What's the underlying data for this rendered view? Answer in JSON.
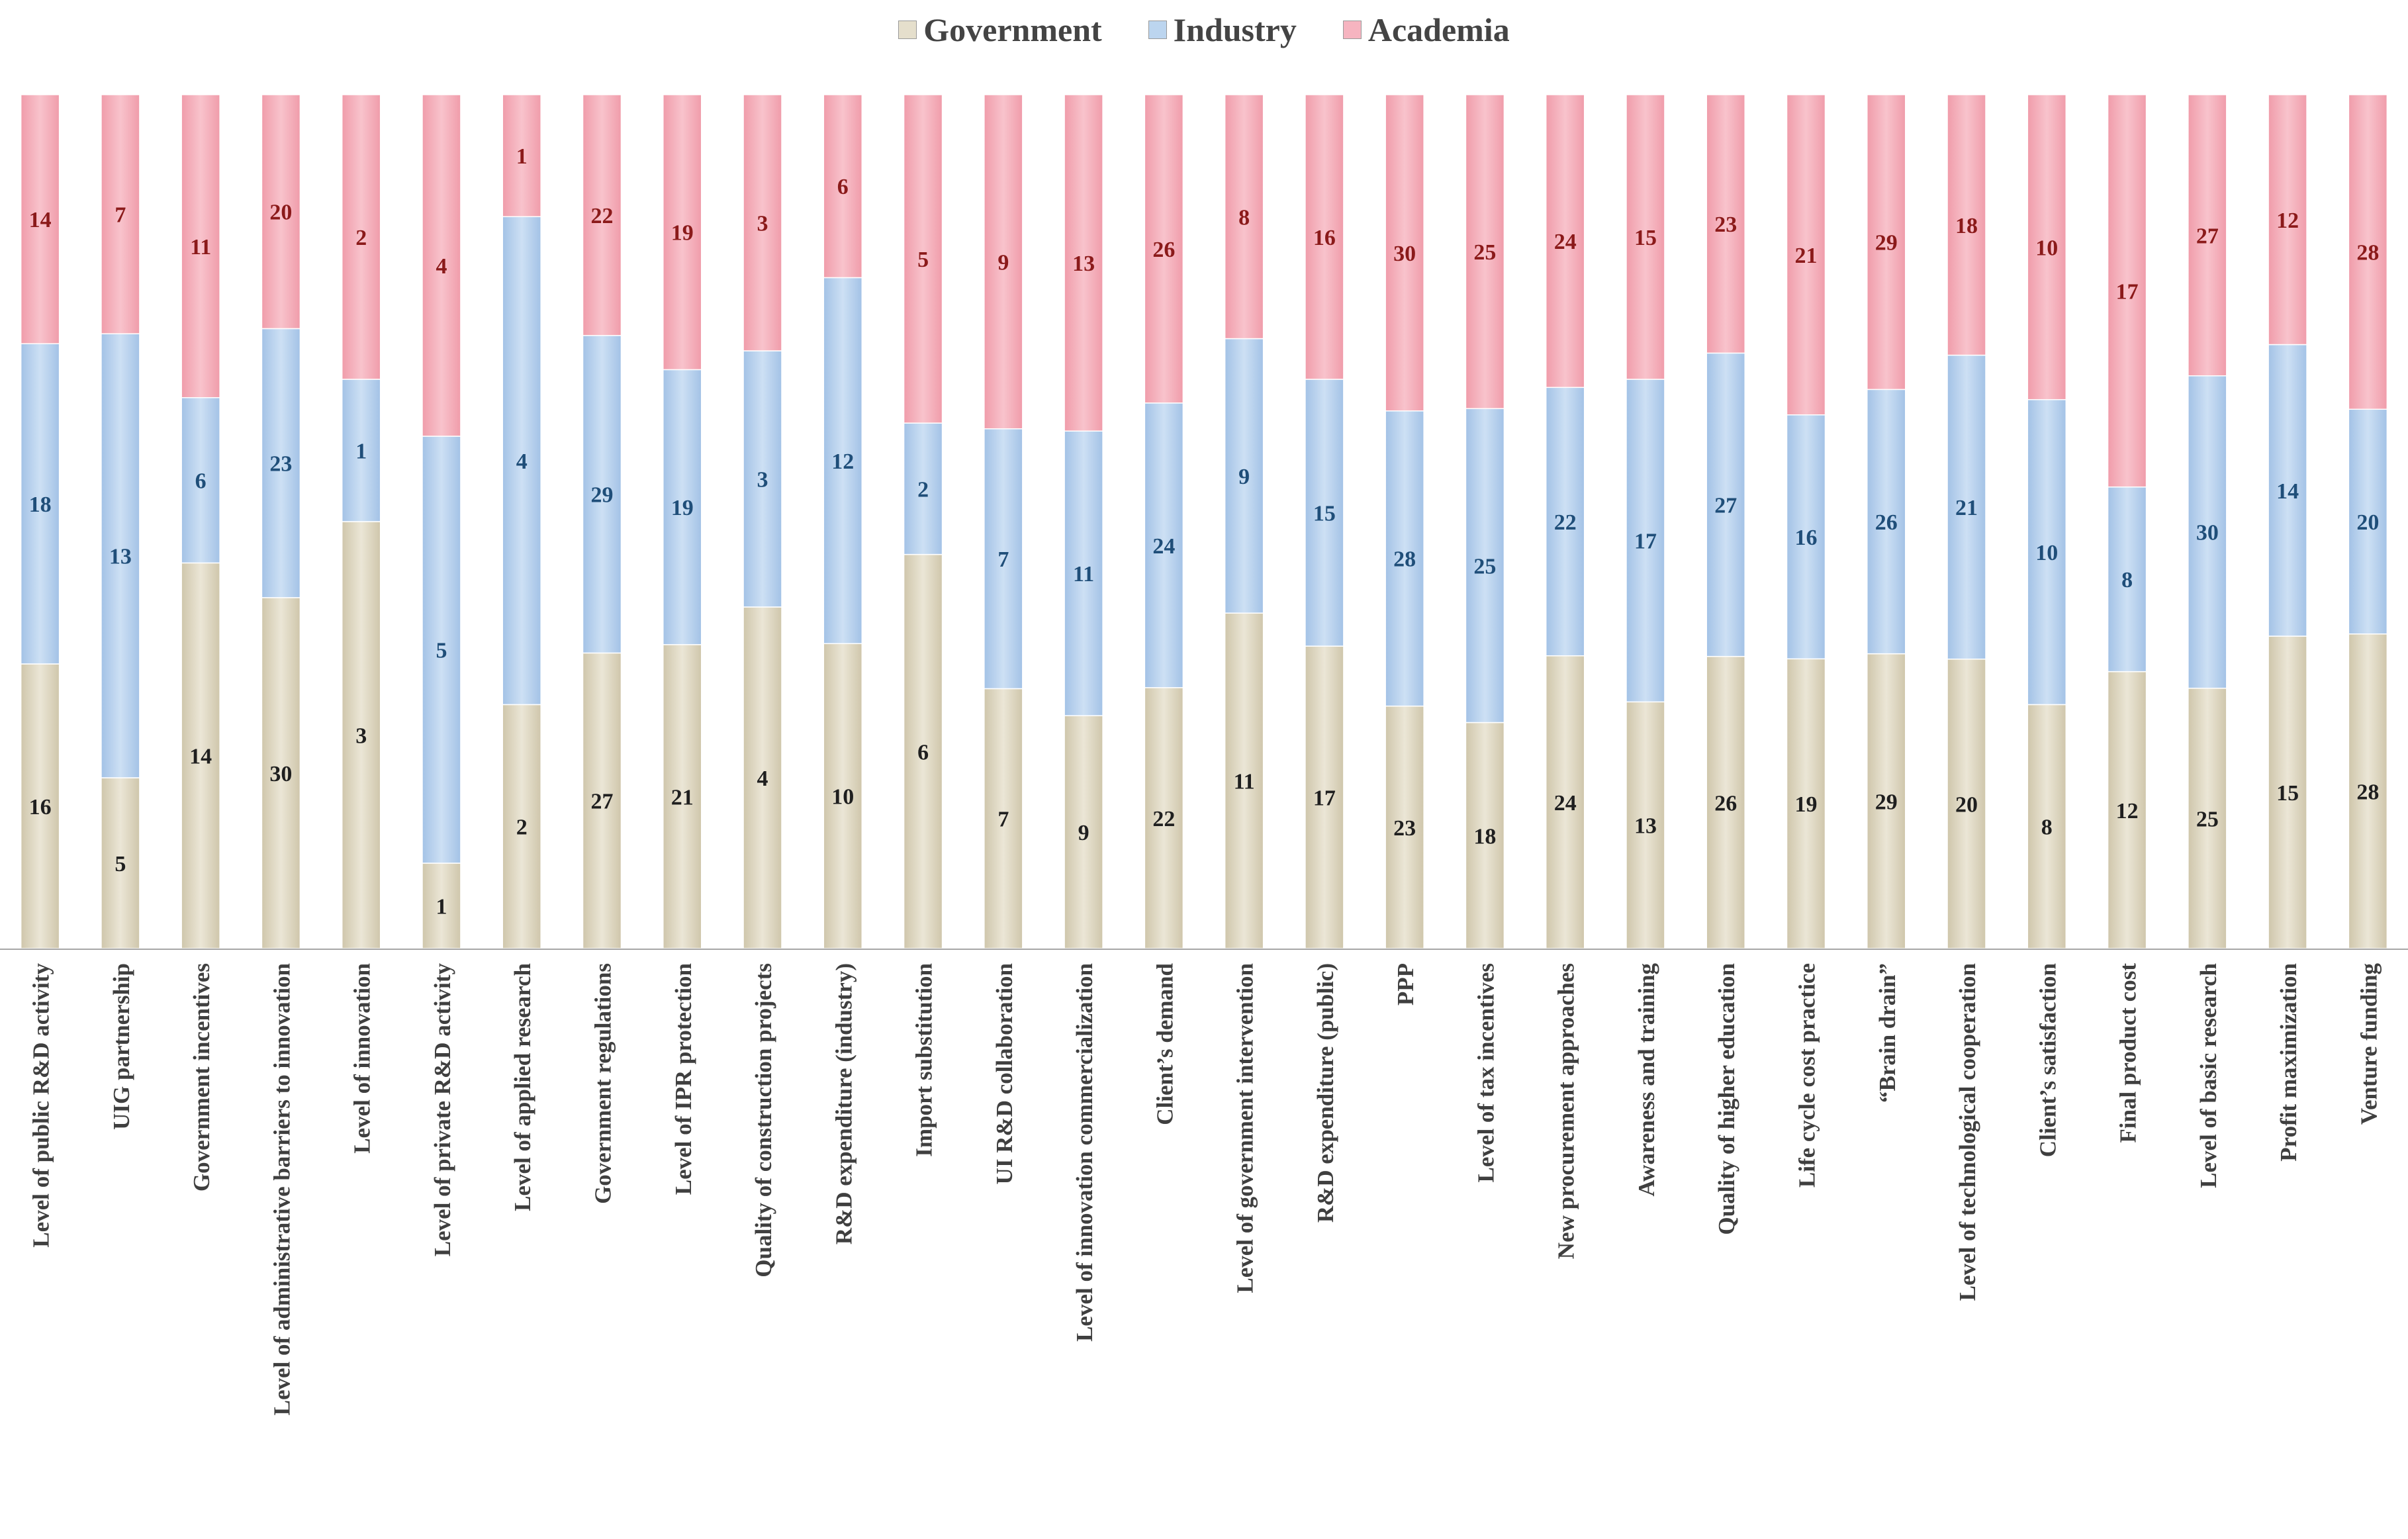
{
  "colors": {
    "Government": "#e5dfcc",
    "Industry": "#bcd5ef",
    "Academia": "#f6b4c0",
    "government_label": "#1f1f1f",
    "industry_label": "#1f4e79",
    "academia_label": "#8b1a1a"
  },
  "legend": {
    "items": [
      {
        "name": "Government",
        "color": "#e5dfcc"
      },
      {
        "name": "Industry",
        "color": "#bcd5ef"
      },
      {
        "name": "Academia",
        "color": "#f6b4c0"
      }
    ]
  },
  "chart_data": {
    "type": "bar",
    "stacked": "percent",
    "legend_position": "top-center",
    "grid": false,
    "title": "",
    "xlabel": "",
    "ylabel": "",
    "categories": [
      "Level of public R&D activity",
      "UIG partnership",
      "Government incentives",
      "Level of administrative barriers to innovation",
      "Level of innovation",
      "Level of private R&D activity",
      "Level of applied research",
      "Government regulations",
      "Level of IPR protection",
      "Quality of construction projects",
      "R&D expenditure (industry)",
      "Import substitution",
      "UI R&D collaboration",
      "Level of innovation commercialization",
      "Client’s demand",
      "Level of government intervention",
      "R&D expenditure (public)",
      "PPP",
      "Level of tax incentives",
      "New procurement approaches",
      "Awareness and training",
      "Quality of higher education",
      "Life cycle cost practice",
      "“Brain drain”",
      "Level of technological cooperation",
      "Client’s satisfaction",
      "Final product cost",
      "Level of basic research",
      "Profit maximization",
      "Venture funding"
    ],
    "series": [
      {
        "name": "Government",
        "values": [
          16,
          5,
          14,
          30,
          3,
          1,
          2,
          27,
          21,
          4,
          10,
          6,
          7,
          9,
          22,
          11,
          17,
          23,
          18,
          24,
          13,
          26,
          19,
          29,
          20,
          8,
          12,
          25,
          15,
          28
        ]
      },
      {
        "name": "Industry",
        "values": [
          18,
          13,
          6,
          23,
          1,
          5,
          4,
          29,
          19,
          3,
          12,
          2,
          7,
          11,
          24,
          9,
          15,
          28,
          25,
          22,
          17,
          27,
          16,
          26,
          21,
          10,
          8,
          30,
          14,
          20
        ]
      },
      {
        "name": "Academia",
        "values": [
          14,
          7,
          11,
          20,
          2,
          4,
          1,
          22,
          19,
          3,
          6,
          5,
          9,
          13,
          26,
          8,
          16,
          30,
          25,
          24,
          15,
          23,
          21,
          29,
          18,
          10,
          17,
          27,
          12,
          28
        ]
      }
    ]
  }
}
